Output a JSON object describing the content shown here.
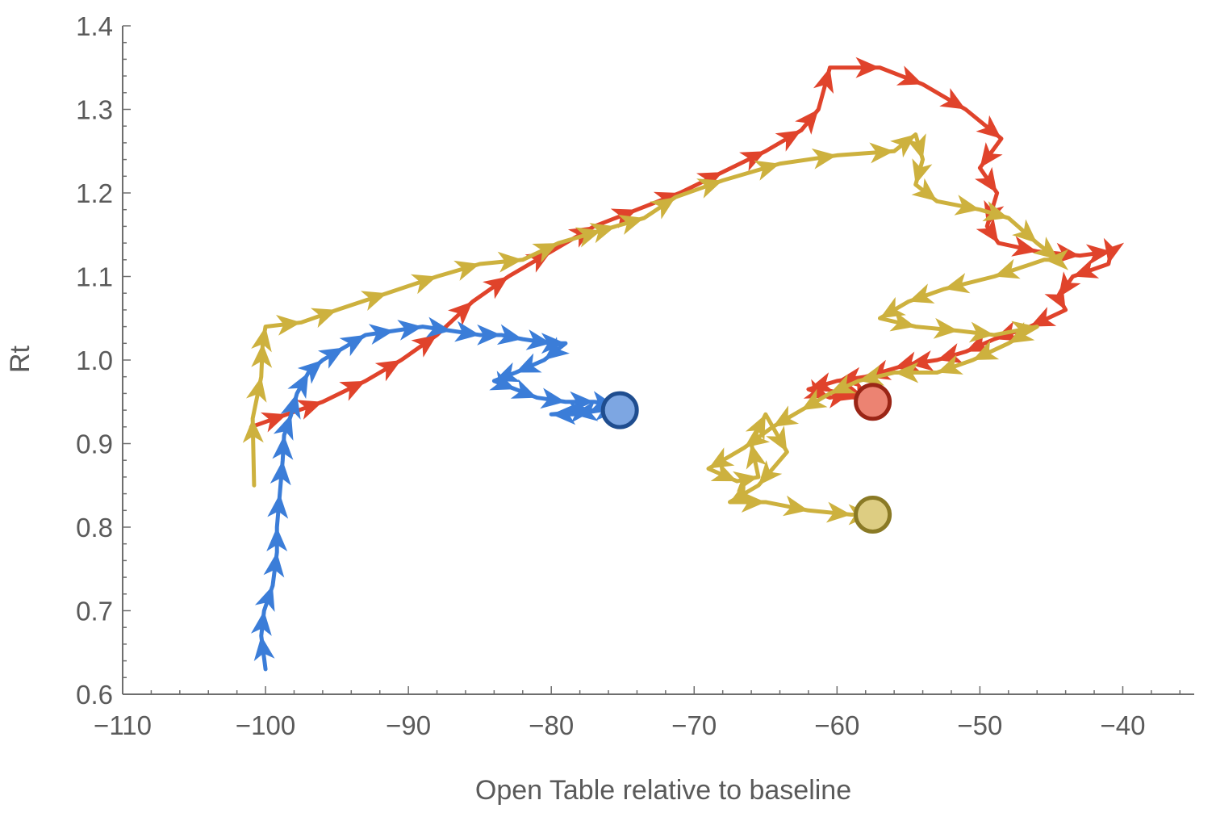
{
  "chart_data": {
    "type": "scatter",
    "style": "connected arrows",
    "title": "",
    "xlabel": "Open Table relative to baseline",
    "ylabel": "Rt",
    "xlim": [
      -110,
      -35
    ],
    "ylim": [
      0.6,
      1.4
    ],
    "xticks": [
      -110,
      -100,
      -90,
      -80,
      -70,
      -60,
      -50,
      -40
    ],
    "yticks": [
      0.6,
      0.7,
      0.8,
      0.9,
      1.0,
      1.1,
      1.2,
      1.3,
      1.4
    ],
    "grid": false,
    "legend": "none",
    "series": [
      {
        "color": "#e0432b",
        "end_fill": "#ec8372",
        "end_stroke": "#9a2516",
        "points": [
          [
            -101,
            0.92
          ],
          [
            -98.5,
            0.935
          ],
          [
            -96,
            0.95
          ],
          [
            -93,
            0.975
          ],
          [
            -90.5,
            1.0
          ],
          [
            -88,
            1.03
          ],
          [
            -85.5,
            1.07
          ],
          [
            -83,
            1.1
          ],
          [
            -80,
            1.13
          ],
          [
            -77,
            1.16
          ],
          [
            -74,
            1.18
          ],
          [
            -71,
            1.2
          ],
          [
            -68,
            1.225
          ],
          [
            -65,
            1.25
          ],
          [
            -62.5,
            1.275
          ],
          [
            -61.3,
            1.3
          ],
          [
            -60.5,
            1.35
          ],
          [
            -57,
            1.35
          ],
          [
            -54,
            1.33
          ],
          [
            -51,
            1.3
          ],
          [
            -48.5,
            1.265
          ],
          [
            -50,
            1.23
          ],
          [
            -48.8,
            1.2
          ],
          [
            -49.5,
            1.16
          ],
          [
            -48.7,
            1.14
          ],
          [
            -46,
            1.13
          ],
          [
            -43,
            1.125
          ],
          [
            -40.8,
            1.13
          ],
          [
            -41,
            1.115
          ],
          [
            -43.5,
            1.1
          ],
          [
            -44.5,
            1.075
          ],
          [
            -44,
            1.06
          ],
          [
            -46.5,
            1.04
          ],
          [
            -49,
            1.025
          ],
          [
            -51,
            1.01
          ],
          [
            -53,
            1.0
          ],
          [
            -55,
            0.995
          ],
          [
            -56,
            0.99
          ],
          [
            -58,
            0.98
          ],
          [
            -60,
            0.975
          ],
          [
            -62,
            0.965
          ],
          [
            -60.5,
            0.955
          ],
          [
            -59,
            0.96
          ],
          [
            -58,
            0.955
          ],
          [
            -57.5,
            0.95
          ]
        ]
      },
      {
        "color": "#cdb13e",
        "end_fill": "#ddcd82",
        "end_stroke": "#8a7a25",
        "points": [
          [
            -100.8,
            0.85
          ],
          [
            -100.9,
            0.93
          ],
          [
            -100.3,
            0.98
          ],
          [
            -100.2,
            1.02
          ],
          [
            -100,
            1.04
          ],
          [
            -97.5,
            1.045
          ],
          [
            -95,
            1.06
          ],
          [
            -91.5,
            1.08
          ],
          [
            -88,
            1.1
          ],
          [
            -85,
            1.115
          ],
          [
            -82,
            1.12
          ],
          [
            -79.5,
            1.14
          ],
          [
            -76.5,
            1.155
          ],
          [
            -75.5,
            1.16
          ],
          [
            -73.5,
            1.17
          ],
          [
            -71.3,
            1.195
          ],
          [
            -68,
            1.215
          ],
          [
            -64,
            1.235
          ],
          [
            -60,
            1.245
          ],
          [
            -56,
            1.25
          ],
          [
            -54.5,
            1.27
          ],
          [
            -54,
            1.24
          ],
          [
            -54.5,
            1.21
          ],
          [
            -53,
            1.19
          ],
          [
            -50,
            1.18
          ],
          [
            -48,
            1.17
          ],
          [
            -46,
            1.14
          ],
          [
            -44.5,
            1.12
          ],
          [
            -45.5,
            1.12
          ],
          [
            -49,
            1.1
          ],
          [
            -52.5,
            1.085
          ],
          [
            -55,
            1.07
          ],
          [
            -57,
            1.05
          ],
          [
            -54.5,
            1.04
          ],
          [
            -51.5,
            1.035
          ],
          [
            -49,
            1.03
          ],
          [
            -46,
            1.04
          ],
          [
            -48,
            1.02
          ],
          [
            -50.5,
            1.0
          ],
          [
            -53,
            0.985
          ],
          [
            -56,
            0.985
          ],
          [
            -58.5,
            0.975
          ],
          [
            -60.5,
            0.96
          ],
          [
            -62.5,
            0.94
          ],
          [
            -64.5,
            0.92
          ],
          [
            -66.5,
            0.895
          ],
          [
            -69,
            0.87
          ],
          [
            -67,
            0.855
          ],
          [
            -65.5,
            0.86
          ],
          [
            -66,
            0.9
          ],
          [
            -65,
            0.935
          ],
          [
            -63.5,
            0.89
          ],
          [
            -65.5,
            0.85
          ],
          [
            -67.5,
            0.83
          ],
          [
            -65,
            0.83
          ],
          [
            -62,
            0.82
          ],
          [
            -59,
            0.815
          ],
          [
            -57.5,
            0.815
          ]
        ]
      },
      {
        "color": "#3b7dd8",
        "end_fill": "#7da6e2",
        "end_stroke": "#1f4d8f",
        "points": [
          [
            -100,
            0.63
          ],
          [
            -100.3,
            0.67
          ],
          [
            -100.1,
            0.7
          ],
          [
            -99.5,
            0.73
          ],
          [
            -99.2,
            0.77
          ],
          [
            -99.2,
            0.8
          ],
          [
            -99,
            0.84
          ],
          [
            -98.8,
            0.88
          ],
          [
            -98.7,
            0.91
          ],
          [
            -98.2,
            0.935
          ],
          [
            -97.8,
            0.96
          ],
          [
            -97,
            0.985
          ],
          [
            -96,
            1.0
          ],
          [
            -94.5,
            1.015
          ],
          [
            -93,
            1.03
          ],
          [
            -91,
            1.035
          ],
          [
            -89,
            1.04
          ],
          [
            -87,
            1.035
          ],
          [
            -85,
            1.03
          ],
          [
            -83.5,
            1.03
          ],
          [
            -82,
            1.025
          ],
          [
            -80,
            1.02
          ],
          [
            -79,
            1.02
          ],
          [
            -80.5,
            1.0
          ],
          [
            -82.5,
            0.985
          ],
          [
            -84,
            0.975
          ],
          [
            -82.5,
            0.965
          ],
          [
            -81,
            0.955
          ],
          [
            -79,
            0.95
          ],
          [
            -77,
            0.95
          ],
          [
            -75.5,
            0.945
          ],
          [
            -76.5,
            0.94
          ],
          [
            -78.5,
            0.935
          ],
          [
            -80,
            0.935
          ],
          [
            -77,
            0.94
          ],
          [
            -75.2,
            0.94
          ]
        ]
      }
    ]
  }
}
